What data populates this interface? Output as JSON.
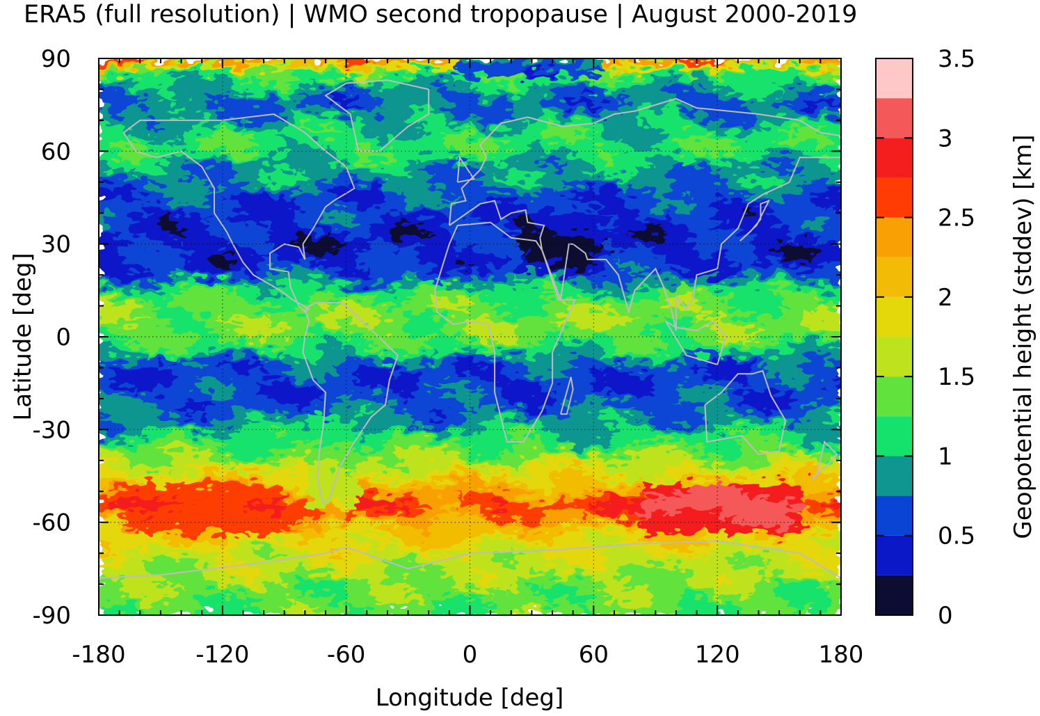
{
  "chart_data": {
    "type": "heatmap",
    "title": "ERA5 (full resolution) | WMO second tropopause | August 2000-2019",
    "xlabel": "Longitude [deg]",
    "ylabel": "Latitude [deg]",
    "xlim": [
      -180,
      180
    ],
    "ylim": [
      -90,
      90
    ],
    "xticks": [
      -180,
      -120,
      -60,
      0,
      60,
      120,
      180
    ],
    "yticks": [
      90,
      60,
      30,
      0,
      -30,
      -60,
      -90
    ],
    "grid": true,
    "colorbar": {
      "label": "Geopotential height (stddev) [km]",
      "range": [
        0,
        3.5
      ],
      "ticks": [
        0,
        0.5,
        1,
        1.5,
        2,
        2.5,
        3,
        3.5
      ],
      "levels": [
        {
          "from": 0.0,
          "to": 0.25,
          "color": "#0d0d33"
        },
        {
          "from": 0.25,
          "to": 0.5,
          "color": "#0a18c8"
        },
        {
          "from": 0.5,
          "to": 0.75,
          "color": "#0a44d4"
        },
        {
          "from": 0.75,
          "to": 1.0,
          "color": "#0e9690"
        },
        {
          "from": 1.0,
          "to": 1.25,
          "color": "#14e26c"
        },
        {
          "from": 1.25,
          "to": 1.5,
          "color": "#62e23c"
        },
        {
          "from": 1.5,
          "to": 1.75,
          "color": "#bee21e"
        },
        {
          "from": 1.75,
          "to": 2.0,
          "color": "#e4d80a"
        },
        {
          "from": 2.0,
          "to": 2.25,
          "color": "#f2bc06"
        },
        {
          "from": 2.25,
          "to": 2.5,
          "color": "#f8a004"
        },
        {
          "from": 2.5,
          "to": 2.75,
          "color": "#fe3c04"
        },
        {
          "from": 2.75,
          "to": 3.0,
          "color": "#f41e1e"
        },
        {
          "from": 3.0,
          "to": 3.25,
          "color": "#f45858"
        },
        {
          "from": 3.25,
          "to": 3.5,
          "color": "#ffc8c8"
        }
      ]
    },
    "zonal_profile": {
      "latitude": [
        90,
        85,
        80,
        75,
        70,
        65,
        60,
        55,
        50,
        45,
        40,
        35,
        30,
        25,
        20,
        15,
        10,
        5,
        0,
        -5,
        -10,
        -15,
        -20,
        -25,
        -30,
        -35,
        -40,
        -45,
        -50,
        -55,
        -60,
        -65,
        -70,
        -75,
        -80,
        -85,
        -90
      ],
      "stddev": [
        2.6,
        1.3,
        0.9,
        0.7,
        0.9,
        1.1,
        1.2,
        0.9,
        0.85,
        0.6,
        0.55,
        0.5,
        0.4,
        0.45,
        0.6,
        1.1,
        1.35,
        1.45,
        1.35,
        1.1,
        0.6,
        0.55,
        0.6,
        0.75,
        0.95,
        1.2,
        1.55,
        1.85,
        2.25,
        2.7,
        2.3,
        1.95,
        1.75,
        1.6,
        1.45,
        1.35,
        1.3
      ]
    },
    "regional_features": [
      {
        "lon": [
          80,
          160
        ],
        "lat": [
          -62,
          -48
        ],
        "stddev": 3.3
      },
      {
        "lon": [
          -170,
          -95
        ],
        "lat": [
          -62,
          -48
        ],
        "stddev": 2.8
      },
      {
        "lon": [
          20,
          60
        ],
        "lat": [
          22,
          40
        ],
        "stddev": 0.15
      },
      {
        "lon": [
          -80,
          -60
        ],
        "lat": [
          -55,
          -25
        ],
        "stddev": 1.3
      },
      {
        "lon": [
          -10,
          60
        ],
        "lat": [
          85,
          90
        ],
        "stddev": 0.15
      }
    ],
    "coastlines": "world coastlines overlay (gray)"
  }
}
